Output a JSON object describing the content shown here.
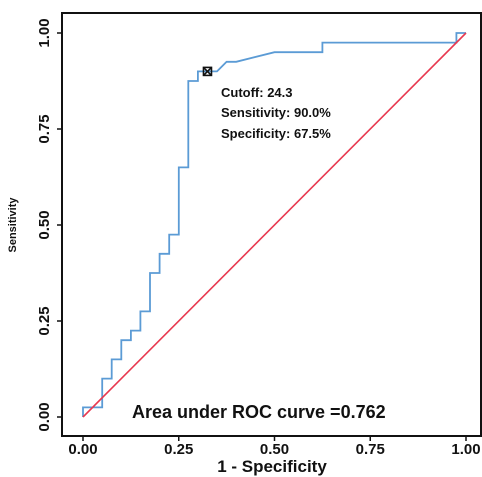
{
  "chart_data": {
    "type": "line",
    "xlabel": "1 - Specificity",
    "ylabel": "Sensitivity",
    "xlim": [
      -0.02,
      1.02
    ],
    "ylim": [
      -0.02,
      1.04
    ],
    "x_ticks": [
      "0.00",
      "0.25",
      "0.50",
      "0.75",
      "1.00"
    ],
    "y_ticks": [
      "0.00",
      "0.25",
      "0.50",
      "0.75",
      "1.00"
    ],
    "grid": false,
    "series": [
      {
        "color": "#5b9bd5",
        "x": [
          0.0,
          0.0,
          0.05,
          0.05,
          0.075,
          0.075,
          0.1,
          0.1,
          0.125,
          0.125,
          0.15,
          0.15,
          0.175,
          0.175,
          0.2,
          0.2,
          0.225,
          0.225,
          0.25,
          0.25,
          0.275,
          0.275,
          0.3,
          0.3,
          0.325,
          0.325,
          0.35,
          0.375,
          0.4,
          0.5,
          0.625,
          0.625,
          0.975,
          0.975,
          1.0
        ],
        "y": [
          0.0,
          0.025,
          0.025,
          0.1,
          0.1,
          0.15,
          0.15,
          0.2,
          0.2,
          0.225,
          0.225,
          0.275,
          0.275,
          0.375,
          0.375,
          0.425,
          0.425,
          0.475,
          0.475,
          0.65,
          0.65,
          0.875,
          0.875,
          0.9,
          0.9,
          0.9,
          0.9,
          0.925,
          0.925,
          0.95,
          0.95,
          0.975,
          0.975,
          1.0,
          1.0
        ]
      },
      {
        "color": "#e8384f",
        "x": [
          0.0,
          1.0
        ],
        "y": [
          0.0,
          1.0
        ]
      }
    ],
    "cutoff_point": {
      "x": 0.325,
      "y": 0.9
    },
    "annotations": {
      "cutoff": "Cutoff: 24.3",
      "sensitivity": "Sensitivity: 90.0%",
      "specificity": "Specificity: 67.5%",
      "auc": "Area under ROC curve =0.762"
    }
  }
}
